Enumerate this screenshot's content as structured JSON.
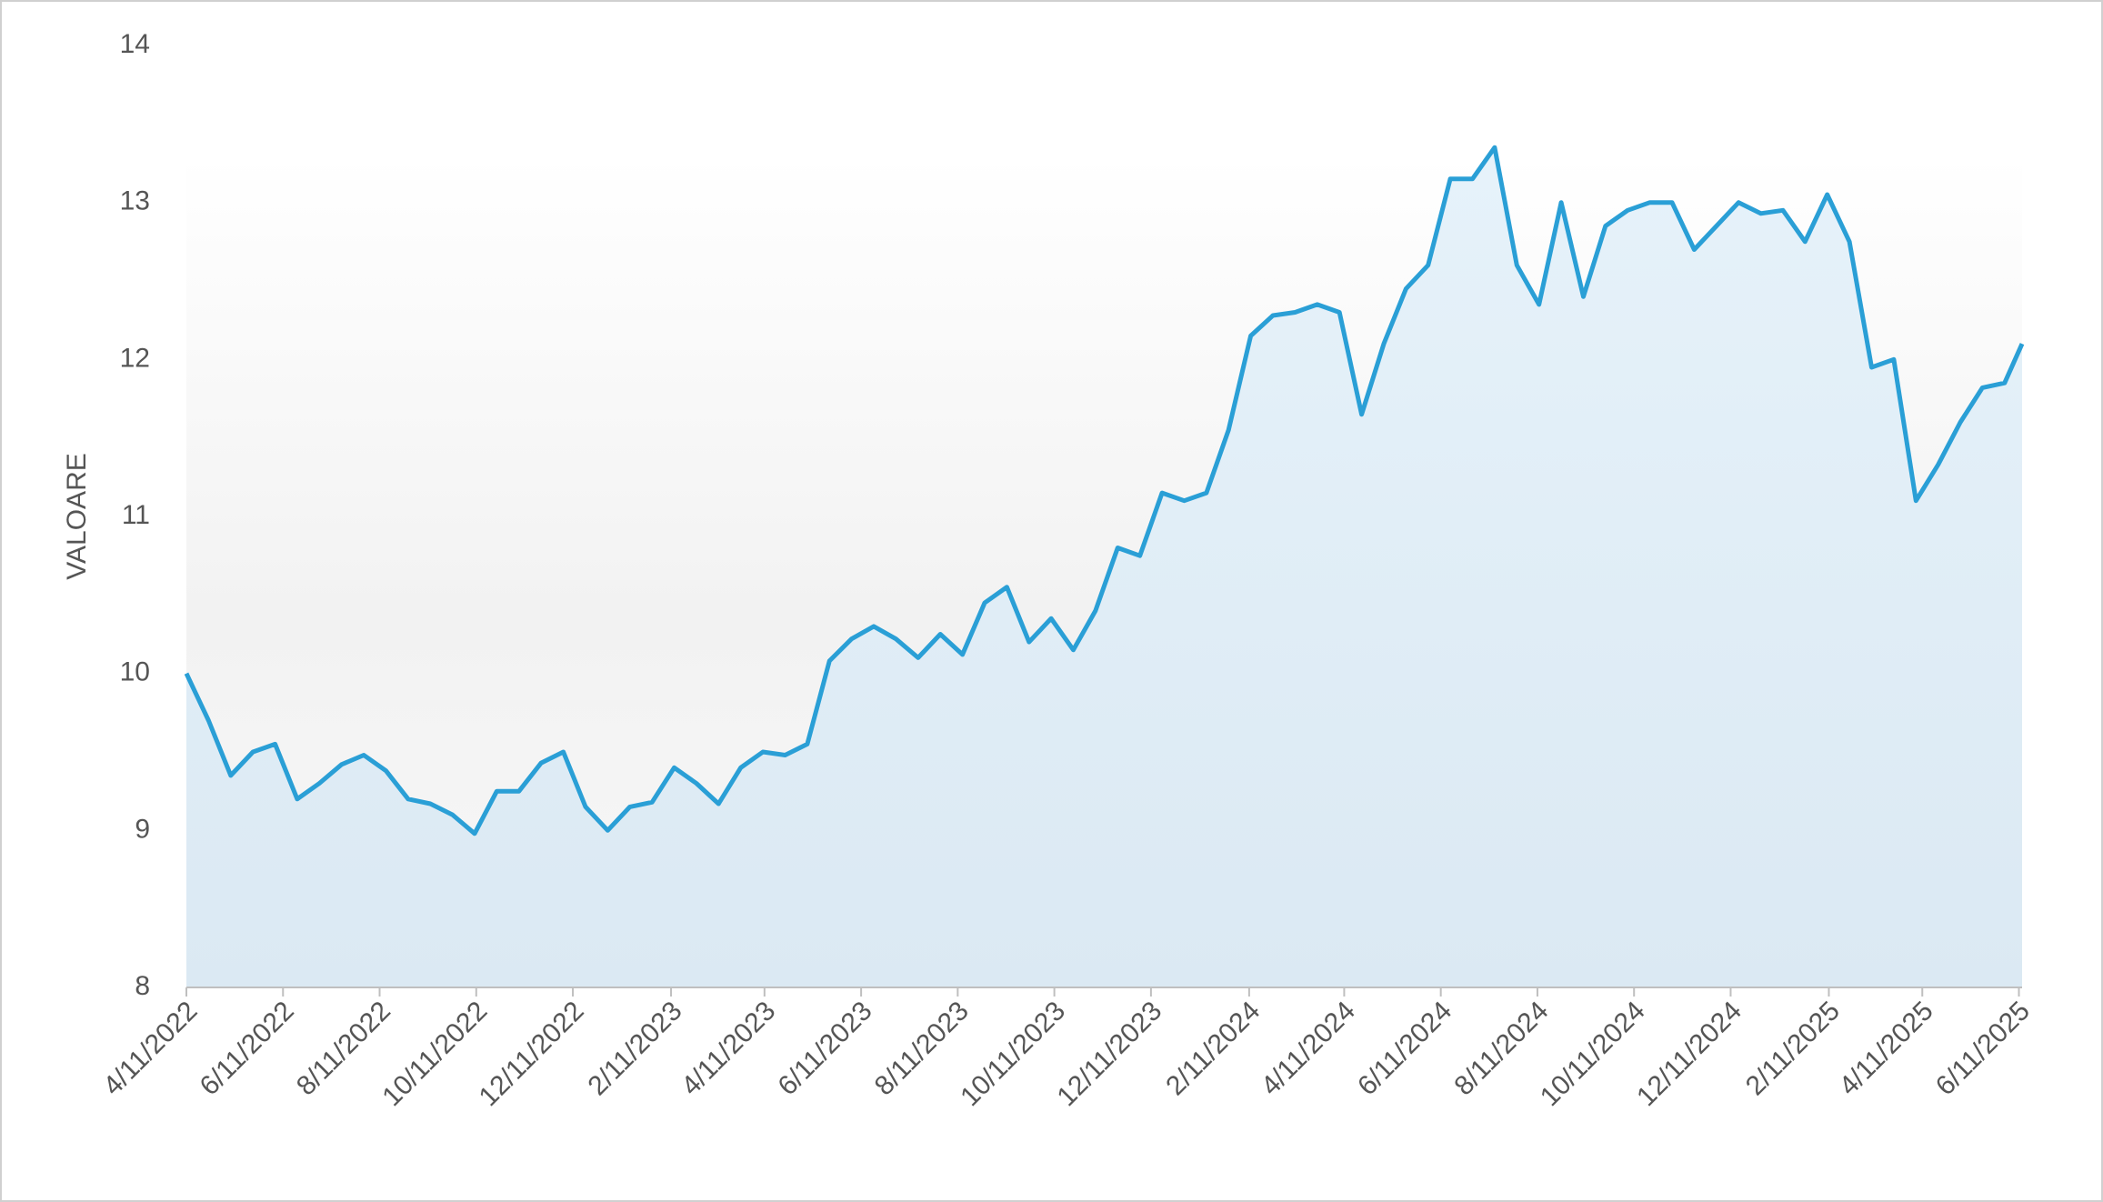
{
  "chart_data": {
    "type": "area",
    "y_label": "VALOARE",
    "color": "#2a9fd6",
    "x": [
      "2022-04-11",
      "2022-04-25",
      "2022-05-09",
      "2022-05-23",
      "2022-06-06",
      "2022-06-20",
      "2022-07-04",
      "2022-07-18",
      "2022-08-01",
      "2022-08-15",
      "2022-08-29",
      "2022-09-12",
      "2022-09-26",
      "2022-10-10",
      "2022-10-24",
      "2022-11-07",
      "2022-11-21",
      "2022-12-05",
      "2022-12-19",
      "2023-01-02",
      "2023-01-16",
      "2023-01-30",
      "2023-02-13",
      "2023-02-27",
      "2023-03-13",
      "2023-03-27",
      "2023-04-10",
      "2023-04-24",
      "2023-05-08",
      "2023-05-22",
      "2023-06-05",
      "2023-06-19",
      "2023-07-03",
      "2023-07-17",
      "2023-07-31",
      "2023-08-14",
      "2023-08-28",
      "2023-09-11",
      "2023-09-25",
      "2023-10-09",
      "2023-10-23",
      "2023-11-06",
      "2023-11-20",
      "2023-12-04",
      "2023-12-18",
      "2024-01-01",
      "2024-01-15",
      "2024-01-29",
      "2024-02-12",
      "2024-02-26",
      "2024-03-11",
      "2024-03-25",
      "2024-04-08",
      "2024-04-22",
      "2024-05-06",
      "2024-05-20",
      "2024-06-03",
      "2024-06-17",
      "2024-07-01",
      "2024-07-15",
      "2024-07-29",
      "2024-08-12",
      "2024-08-26",
      "2024-09-09",
      "2024-09-23",
      "2024-10-07",
      "2024-10-21",
      "2024-11-04",
      "2024-11-18",
      "2024-12-02",
      "2024-12-16",
      "2024-12-30",
      "2025-01-13",
      "2025-01-27",
      "2025-02-10",
      "2025-02-24",
      "2025-03-10",
      "2025-03-24",
      "2025-04-07",
      "2025-04-21",
      "2025-05-05",
      "2025-05-19",
      "2025-06-02",
      "2025-06-13"
    ],
    "values": [
      10.0,
      9.7,
      9.35,
      9.5,
      9.55,
      9.2,
      9.3,
      9.42,
      9.48,
      9.38,
      9.2,
      9.17,
      9.1,
      8.98,
      9.25,
      9.25,
      9.43,
      9.5,
      9.15,
      9.0,
      9.15,
      9.18,
      9.4,
      9.3,
      9.17,
      9.4,
      9.5,
      9.48,
      9.55,
      10.08,
      10.22,
      10.3,
      10.22,
      10.1,
      10.25,
      10.12,
      10.45,
      10.55,
      10.2,
      10.35,
      10.15,
      10.4,
      10.8,
      10.75,
      11.15,
      11.1,
      11.15,
      11.55,
      12.15,
      12.28,
      12.3,
      12.35,
      12.3,
      11.65,
      12.1,
      12.45,
      12.6,
      13.15,
      13.15,
      13.35,
      12.6,
      12.35,
      13.0,
      12.4,
      12.85,
      12.95,
      13.0,
      13.0,
      12.7,
      12.85,
      13.0,
      12.93,
      12.95,
      12.75,
      13.05,
      12.75,
      11.95,
      12.0,
      11.1,
      11.33,
      11.6,
      11.82,
      11.85,
      12.1
    ],
    "xlim": [
      "2022-04-11",
      "2025-06-13"
    ],
    "xticks": [
      {
        "value": "2022-04-11",
        "label": "4/11/2022"
      },
      {
        "value": "2022-06-11",
        "label": "6/11/2022"
      },
      {
        "value": "2022-08-11",
        "label": "8/11/2022"
      },
      {
        "value": "2022-10-11",
        "label": "10/11/2022"
      },
      {
        "value": "2022-12-11",
        "label": "12/11/2022"
      },
      {
        "value": "2023-02-11",
        "label": "2/11/2023"
      },
      {
        "value": "2023-04-11",
        "label": "4/11/2023"
      },
      {
        "value": "2023-06-11",
        "label": "6/11/2023"
      },
      {
        "value": "2023-08-11",
        "label": "8/11/2023"
      },
      {
        "value": "2023-10-11",
        "label": "10/11/2023"
      },
      {
        "value": "2023-12-11",
        "label": "12/11/2023"
      },
      {
        "value": "2024-02-11",
        "label": "2/11/2024"
      },
      {
        "value": "2024-04-11",
        "label": "4/11/2024"
      },
      {
        "value": "2024-06-11",
        "label": "6/11/2024"
      },
      {
        "value": "2024-08-11",
        "label": "8/11/2024"
      },
      {
        "value": "2024-10-11",
        "label": "10/11/2024"
      },
      {
        "value": "2024-12-11",
        "label": "12/11/2024"
      },
      {
        "value": "2025-02-11",
        "label": "2/11/2025"
      },
      {
        "value": "2025-04-11",
        "label": "4/11/2025"
      },
      {
        "value": "2025-06-11",
        "label": "6/11/2025"
      }
    ],
    "ylim": [
      8,
      14
    ],
    "yticks": [
      8,
      9,
      10,
      11,
      12,
      13,
      14
    ],
    "grid": false
  }
}
